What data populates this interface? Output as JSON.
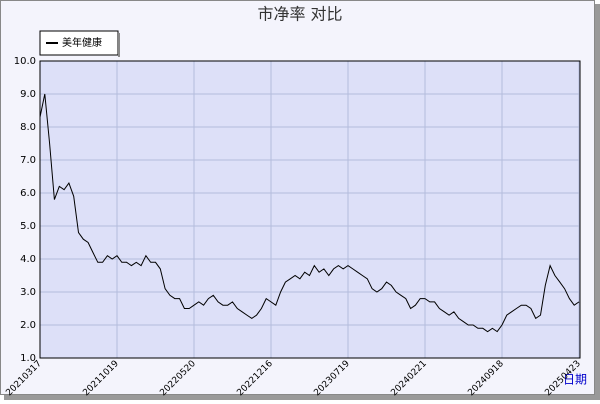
{
  "chart_data": {
    "type": "line",
    "title": "市净率 对比",
    "xlabel": "日期",
    "categories": [
      "20210317",
      null,
      null,
      null,
      null,
      null,
      null,
      null,
      null,
      null,
      null,
      null,
      null,
      null,
      null,
      null,
      "20211019",
      null,
      null,
      null,
      null,
      null,
      null,
      null,
      null,
      null,
      null,
      null,
      null,
      null,
      null,
      null,
      "20220520",
      null,
      null,
      null,
      null,
      null,
      null,
      null,
      null,
      null,
      null,
      null,
      null,
      null,
      null,
      null,
      "20221216",
      null,
      null,
      null,
      null,
      null,
      null,
      null,
      null,
      null,
      null,
      null,
      null,
      null,
      null,
      null,
      "20230719",
      null,
      null,
      null,
      null,
      null,
      null,
      null,
      null,
      null,
      null,
      null,
      null,
      null,
      null,
      null,
      "20240221",
      null,
      null,
      null,
      null,
      null,
      null,
      null,
      null,
      null,
      null,
      null,
      null,
      null,
      null,
      null,
      "20240918",
      null,
      null,
      null,
      null,
      null,
      null,
      null,
      null,
      null,
      null,
      null,
      null,
      null,
      null,
      null,
      "20250423"
    ],
    "series": [
      {
        "name": "美年健康",
        "color": "#000000",
        "values": [
          8.3,
          9.0,
          7.5,
          5.8,
          6.2,
          6.1,
          6.3,
          5.9,
          4.8,
          4.6,
          4.5,
          4.2,
          3.9,
          3.9,
          4.1,
          4.0,
          4.1,
          3.9,
          3.9,
          3.8,
          3.9,
          3.8,
          4.1,
          3.9,
          3.9,
          3.7,
          3.1,
          2.9,
          2.8,
          2.8,
          2.5,
          2.5,
          2.6,
          2.7,
          2.6,
          2.8,
          2.9,
          2.7,
          2.6,
          2.6,
          2.7,
          2.5,
          2.4,
          2.3,
          2.2,
          2.3,
          2.5,
          2.8,
          2.7,
          2.6,
          3.0,
          3.3,
          3.4,
          3.5,
          3.4,
          3.6,
          3.5,
          3.8,
          3.6,
          3.7,
          3.5,
          3.7,
          3.8,
          3.7,
          3.8,
          3.7,
          3.6,
          3.5,
          3.4,
          3.1,
          3.0,
          3.1,
          3.3,
          3.2,
          3.0,
          2.9,
          2.8,
          2.5,
          2.6,
          2.8,
          2.8,
          2.7,
          2.7,
          2.5,
          2.4,
          2.3,
          2.4,
          2.2,
          2.1,
          2.0,
          2.0,
          1.9,
          1.9,
          1.8,
          1.9,
          1.8,
          2.0,
          2.3,
          2.4,
          2.5,
          2.6,
          2.6,
          2.5,
          2.2,
          2.3,
          3.2,
          3.8,
          3.5,
          3.3,
          3.1,
          2.8,
          2.6,
          2.7
        ]
      }
    ],
    "ylim": [
      1,
      10
    ],
    "yticks": [
      {
        "value": 1,
        "label": "1.0"
      },
      {
        "value": 2,
        "label": "2.0"
      },
      {
        "value": 3,
        "label": "3.0"
      },
      {
        "value": 4,
        "label": "4.0"
      },
      {
        "value": 5,
        "label": "5.0"
      },
      {
        "value": 6,
        "label": "6.0"
      },
      {
        "value": 7,
        "label": "7.0"
      },
      {
        "value": 8,
        "label": "8.0"
      },
      {
        "value": 9,
        "label": "9.0"
      },
      {
        "value": 10,
        "label": "10.0"
      }
    ],
    "grid": true
  }
}
